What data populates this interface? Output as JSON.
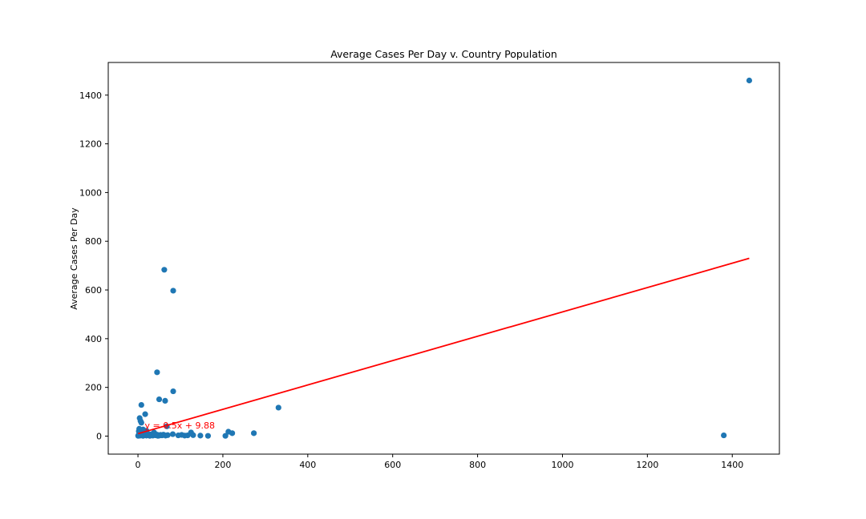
{
  "chart_data": {
    "type": "scatter",
    "title": "Average Cases Per Day v. Country Population",
    "xlabel": "",
    "ylabel": "Average Cases Per Day",
    "xlim": [
      -70,
      1511
    ],
    "ylim": [
      -74,
      1534
    ],
    "xticks": [
      0,
      200,
      400,
      600,
      800,
      1000,
      1200,
      1400
    ],
    "yticks": [
      0,
      200,
      400,
      600,
      800,
      1000,
      1200,
      1400
    ],
    "grid": false,
    "point_color": "#1f77b4",
    "line_color": "#ff0000",
    "annotation": {
      "text": "y = 0.5x + 9.88",
      "x": 16,
      "y": 45,
      "color": "#ff0000"
    },
    "regression": {
      "slope": 0.5,
      "intercept": 9.88,
      "x_range": [
        0.3,
        1440
      ]
    },
    "series": [
      {
        "x": [
          1440,
          1380,
          62,
          83,
          45,
          83,
          50,
          64,
          331,
          8,
          17,
          4,
          6,
          8,
          12,
          3,
          20,
          4,
          5,
          6,
          7,
          8,
          10,
          12,
          15,
          18,
          20,
          22,
          25,
          28,
          30,
          32,
          35,
          38,
          40,
          43,
          47,
          50,
          53,
          57,
          60,
          65,
          70,
          82,
          95,
          103,
          110,
          117,
          125,
          130,
          147,
          165,
          206,
          213,
          222,
          273,
          0.5,
          1,
          2,
          2.5,
          3,
          11,
          24,
          33,
          37,
          45,
          55,
          68
        ],
        "y": [
          1460,
          3,
          683,
          597,
          262,
          184,
          151,
          145,
          117,
          128,
          90,
          74,
          62,
          55,
          27,
          30,
          22,
          5,
          2,
          8,
          12,
          3,
          6,
          1,
          4,
          10,
          2,
          7,
          3,
          1,
          5,
          8,
          2,
          15,
          4,
          3,
          1,
          2,
          5,
          3,
          6,
          2,
          4,
          8,
          3,
          5,
          2,
          3,
          15,
          4,
          2,
          1,
          1,
          18,
          12,
          12,
          1,
          3,
          20,
          2,
          14,
          7,
          9,
          4,
          11,
          6,
          3,
          40
        ]
      }
    ]
  }
}
